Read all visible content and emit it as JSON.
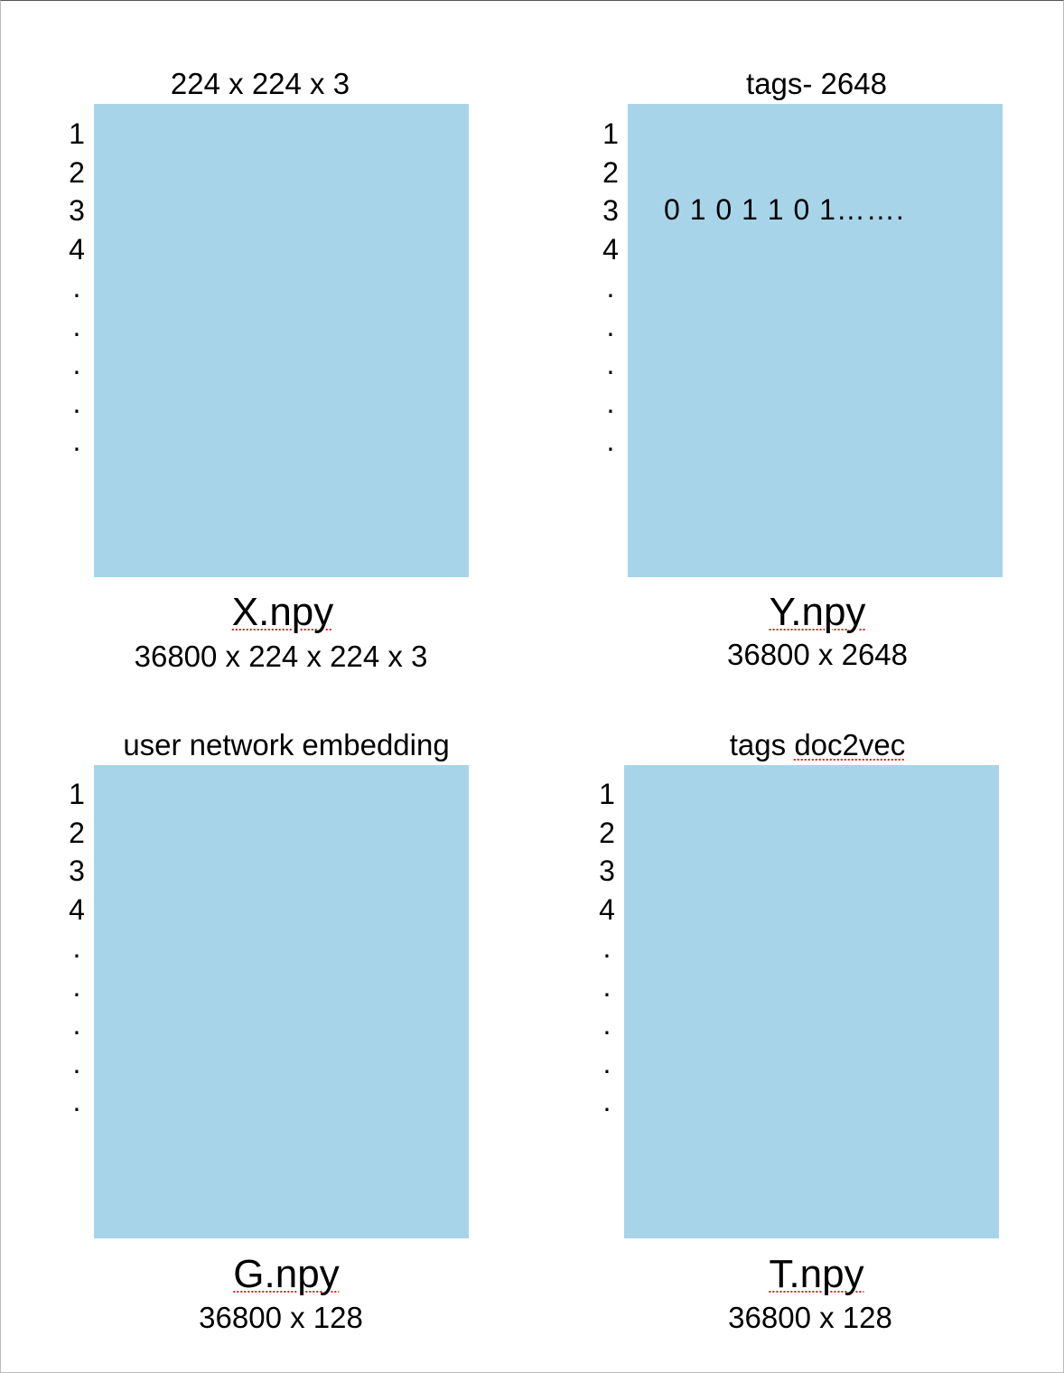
{
  "panels": [
    {
      "id": "x",
      "top_label": "224 x 224 x 3",
      "row_labels": [
        "1",
        "2",
        "3",
        "4",
        ".",
        ".",
        ".",
        ".",
        "."
      ],
      "content_row": "",
      "filename": "X.npy",
      "dimensions": "36800 x 224 x 224 x 3"
    },
    {
      "id": "y",
      "top_label": "tags- 2648",
      "row_labels": [
        "1",
        "2",
        "3",
        "4",
        ".",
        ".",
        ".",
        ".",
        "."
      ],
      "content_row": "0 1 0 1 1 0 1…….",
      "filename": "Y.npy",
      "dimensions": "36800 x 2648"
    },
    {
      "id": "g",
      "top_label": "user network embedding",
      "row_labels": [
        "1",
        "2",
        "3",
        "4",
        ".",
        ".",
        ".",
        ".",
        "."
      ],
      "content_row": "",
      "filename": "G.npy",
      "dimensions": "36800 x 128"
    },
    {
      "id": "t",
      "top_label_prefix": "tags ",
      "top_label_word": "doc2vec",
      "row_labels": [
        "1",
        "2",
        "3",
        "4",
        ".",
        ".",
        ".",
        ".",
        "."
      ],
      "content_row": "",
      "filename": "T.npy",
      "dimensions": "36800 x 128"
    }
  ],
  "colors": {
    "matrix_fill": "#a8d4ea",
    "spellcheck_underline": "#e0201c"
  }
}
